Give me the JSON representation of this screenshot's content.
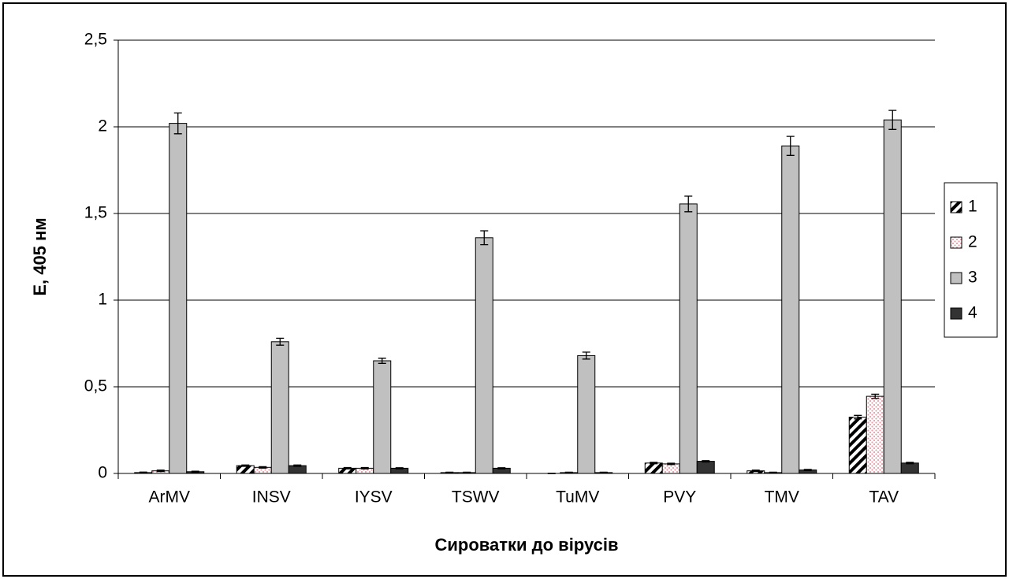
{
  "chart_data": {
    "type": "bar",
    "x_label": "Сироватки до вірусів",
    "y_label": "Е, 405 нм",
    "categories": [
      "ArMV",
      "INSV",
      "IYSV",
      "TSWV",
      "TuMV",
      "PVY",
      "TMV",
      "TAV"
    ],
    "series": [
      {
        "name": "1",
        "color": "#000000",
        "pattern": "hatch",
        "values": [
          0.005,
          0.045,
          0.03,
          0.005,
          0,
          0.06,
          0.015,
          0.325
        ],
        "errors": [
          0.003,
          0.004,
          0.004,
          0.002,
          0.001,
          0.004,
          0.004,
          0.01
        ]
      },
      {
        "name": "2",
        "color": "#e8a0a8",
        "pattern": "dots",
        "values": [
          0.015,
          0.035,
          0.03,
          0.005,
          0.005,
          0.055,
          0.005,
          0.445
        ],
        "errors": [
          0.004,
          0.004,
          0.004,
          0.002,
          0.002,
          0.004,
          0.002,
          0.012
        ]
      },
      {
        "name": "3",
        "color": "#c0c0c0",
        "pattern": "solid",
        "values": [
          2.02,
          0.76,
          0.65,
          1.36,
          0.68,
          1.555,
          1.89,
          2.04
        ],
        "errors": [
          0.06,
          0.02,
          0.015,
          0.04,
          0.02,
          0.045,
          0.055,
          0.055
        ]
      },
      {
        "name": "4",
        "color": "#333333",
        "pattern": "solid",
        "values": [
          0.01,
          0.045,
          0.03,
          0.03,
          0.005,
          0.07,
          0.02,
          0.06
        ],
        "errors": [
          0.003,
          0.004,
          0.003,
          0.003,
          0.002,
          0.004,
          0.003,
          0.004
        ]
      }
    ],
    "ylim": [
      0,
      2.5
    ],
    "yticks": [
      0,
      {
        "value": 0.5,
        "label": "0,5"
      },
      1,
      {
        "value": 1.5,
        "label": "1,5"
      },
      2,
      {
        "value": 2.5,
        "label": "2,5"
      }
    ],
    "grid": true,
    "legend": "right"
  }
}
